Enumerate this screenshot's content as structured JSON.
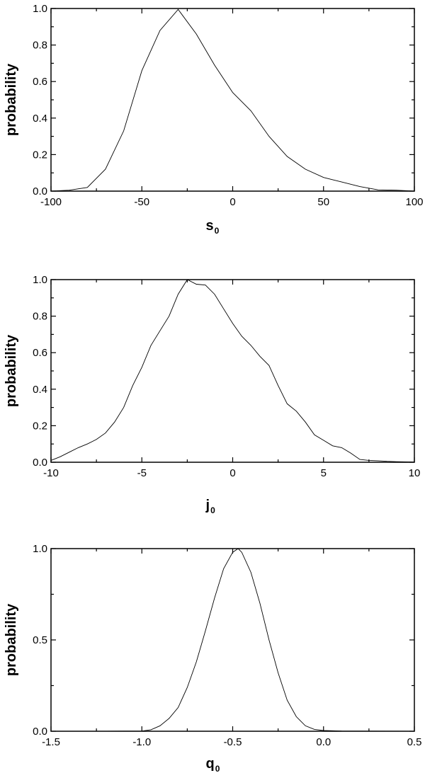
{
  "chart_data": [
    {
      "type": "line",
      "xlabel": "s",
      "xlabel_subscript": "0",
      "ylabel": "probability",
      "xlim": [
        -100,
        100
      ],
      "ylim": [
        0,
        1.0
      ],
      "xticks": [
        -100,
        -50,
        0,
        50,
        100
      ],
      "xtick_labels": [
        "-100",
        "-50",
        "0",
        "50",
        "100"
      ],
      "yticks": [
        0.0,
        0.2,
        0.4,
        0.6,
        0.8,
        1.0
      ],
      "ytick_labels": [
        "0.0",
        "0.2",
        "0.4",
        "0.6",
        "0.8",
        "1.0"
      ],
      "grid": false,
      "series": [
        {
          "x": [
            -100,
            -90,
            -80,
            -70,
            -60,
            -50,
            -40,
            -30,
            -20,
            -10,
            0,
            10,
            20,
            30,
            40,
            50,
            60,
            70,
            80,
            90,
            100
          ],
          "y": [
            0.0,
            0.005,
            0.02,
            0.12,
            0.33,
            0.66,
            0.88,
            0.995,
            0.86,
            0.69,
            0.54,
            0.44,
            0.3,
            0.19,
            0.12,
            0.075,
            0.05,
            0.025,
            0.007,
            0.005,
            0.0
          ]
        }
      ]
    },
    {
      "type": "line",
      "xlabel": "j",
      "xlabel_subscript": "0",
      "ylabel": "probability",
      "xlim": [
        -10,
        10
      ],
      "ylim": [
        0,
        1.0
      ],
      "xticks": [
        -10,
        -5,
        0,
        5,
        10
      ],
      "xtick_labels": [
        "-10",
        "-5",
        "0",
        "5",
        "10"
      ],
      "yticks": [
        0.0,
        0.2,
        0.4,
        0.6,
        0.8,
        1.0
      ],
      "ytick_labels": [
        "0.0",
        "0.2",
        "0.4",
        "0.6",
        "0.8",
        "1.0"
      ],
      "grid": false,
      "series": [
        {
          "x": [
            -10,
            -9.5,
            -9,
            -8.5,
            -8,
            -7.5,
            -7,
            -6.5,
            -6,
            -5.5,
            -5,
            -4.5,
            -4,
            -3.5,
            -3,
            -2.5,
            -2,
            -1.5,
            -1,
            -0.5,
            0,
            0.5,
            1,
            1.5,
            2,
            2.5,
            3,
            3.5,
            4,
            4.5,
            5,
            5.5,
            6,
            6.5,
            7,
            7.5,
            8,
            8.5,
            9,
            9.5,
            10
          ],
          "y": [
            0.01,
            0.03,
            0.055,
            0.08,
            0.1,
            0.125,
            0.16,
            0.22,
            0.3,
            0.42,
            0.52,
            0.64,
            0.72,
            0.8,
            0.92,
            1.0,
            0.975,
            0.97,
            0.92,
            0.84,
            0.76,
            0.69,
            0.64,
            0.58,
            0.53,
            0.42,
            0.32,
            0.28,
            0.22,
            0.15,
            0.12,
            0.09,
            0.08,
            0.05,
            0.015,
            0.01,
            0.008,
            0.005,
            0.003,
            0.002,
            0.001
          ]
        }
      ]
    },
    {
      "type": "line",
      "xlabel": "q",
      "xlabel_subscript": "0",
      "ylabel": "probability",
      "xlim": [
        -1.5,
        0.5
      ],
      "ylim": [
        0,
        1.0
      ],
      "xticks": [
        -1.5,
        -1.0,
        -0.5,
        0.0,
        0.5
      ],
      "xtick_labels": [
        "-1.5",
        "-1.0",
        "-0.5",
        "0.0",
        "0.5"
      ],
      "yticks": [
        0.0,
        0.5,
        1.0
      ],
      "ytick_labels": [
        "0.0",
        "0.5",
        "1.0"
      ],
      "grid": false,
      "series": [
        {
          "x": [
            -1.5,
            -1.2,
            -1.0,
            -0.95,
            -0.9,
            -0.85,
            -0.8,
            -0.75,
            -0.7,
            -0.65,
            -0.6,
            -0.55,
            -0.5,
            -0.47,
            -0.45,
            -0.4,
            -0.35,
            -0.3,
            -0.25,
            -0.2,
            -0.15,
            -0.1,
            -0.05,
            0.0,
            0.1,
            0.5
          ],
          "y": [
            0.0,
            0.0,
            0.001,
            0.008,
            0.03,
            0.07,
            0.13,
            0.24,
            0.38,
            0.55,
            0.73,
            0.89,
            0.98,
            1.0,
            0.98,
            0.87,
            0.7,
            0.5,
            0.32,
            0.17,
            0.08,
            0.03,
            0.01,
            0.004,
            0.001,
            0.0
          ]
        }
      ]
    }
  ]
}
